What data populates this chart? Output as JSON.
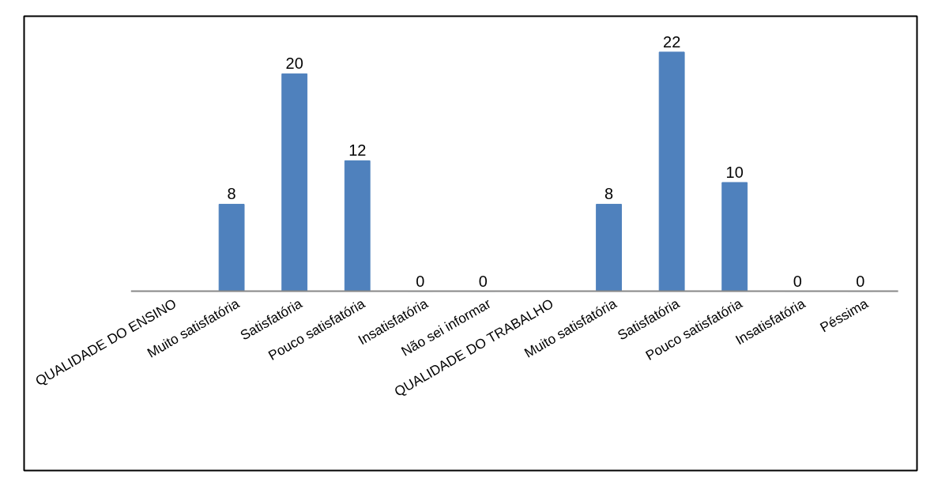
{
  "chart_data": {
    "type": "bar",
    "categories": [
      "QUALIDADE DO ENSINO",
      "Muito satisfatória",
      "Satisfatória",
      "Pouco satisfatória",
      "Insatisfatória",
      "Não sei informar",
      "QUALIDADE DO TRABALHO",
      "Muito satisfatória",
      "Satisfatória",
      "Pouco satisfatória",
      "Insatisfatória",
      "Péssima"
    ],
    "values": [
      null,
      8,
      20,
      12,
      0,
      0,
      null,
      8,
      22,
      10,
      0,
      0
    ],
    "color": "#4f81bd",
    "data_labels": true,
    "grid": false
  }
}
